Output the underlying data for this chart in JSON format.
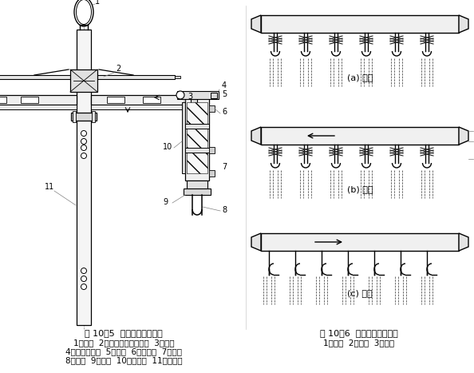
{
  "title_left": "图 10－5  星形架结构示意图",
  "title_right": "图 10－6  星形架工作过程图",
  "caption_left_1": "1－吊环  2－平面螺旋盘组合件  3－机架",
  "caption_left_2": "4－离合定位器  5－轮辐  6－针板架  7－针板",
  "caption_left_3": "8－钩针  9－挡条  10－挡条板  11－多孔管",
  "caption_right_1": "1－挡条  2－钩针  3－坯绸",
  "label_a": "(a) 挂绸",
  "label_b": "(b) 精练",
  "label_c": "(c) 脱钩",
  "bg_color": "#ffffff",
  "line_color": "#000000",
  "fig_width": 5.94,
  "fig_height": 4.67
}
